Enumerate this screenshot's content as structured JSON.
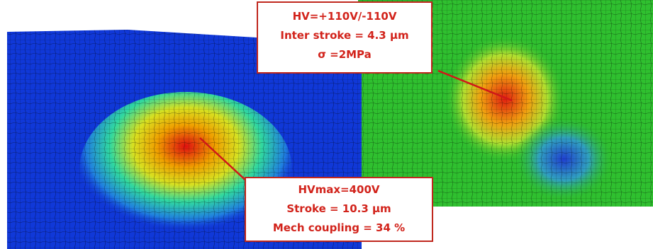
{
  "callouts": [
    {
      "lines": [
        "HV=+110V/-110V",
        "Inter stroke = 4.3 µm",
        "σ =2MPa"
      ]
    },
    {
      "lines": [
        "HVmax=400V",
        "Stroke = 10.3 µm",
        "Mech coupling = 34 %"
      ]
    }
  ]
}
